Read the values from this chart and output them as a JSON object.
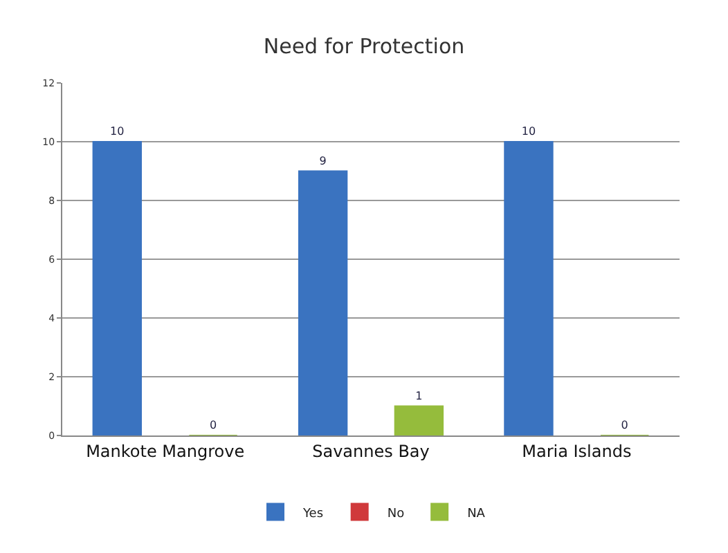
{
  "chart_data": {
    "type": "bar",
    "title": "Need for Protection",
    "categories": [
      "Mankote Mangrove",
      "Savannes Bay",
      "Maria Islands"
    ],
    "series": [
      {
        "name": "Yes",
        "color": "#3a73c0",
        "values": [
          10,
          9,
          10
        ],
        "value_labels": [
          "10",
          "9",
          "10"
        ]
      },
      {
        "name": "No",
        "color": "#d0393b",
        "values": [
          null,
          null,
          null
        ]
      },
      {
        "name": "NA",
        "color": "#95bc3c",
        "values": [
          0,
          1,
          0
        ],
        "value_labels": [
          "0",
          "1",
          "0"
        ]
      }
    ],
    "ylim": [
      0,
      12
    ],
    "yticks": [
      0,
      2,
      4,
      6,
      8,
      10,
      12
    ],
    "grid": "y",
    "legend": "bottom"
  }
}
